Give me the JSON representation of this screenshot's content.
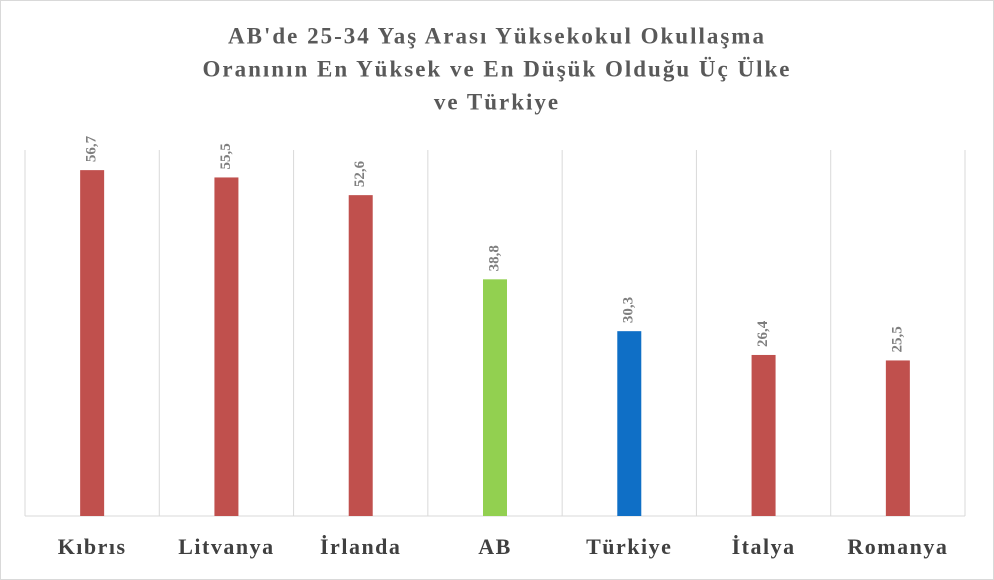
{
  "chart_data": {
    "type": "bar",
    "title": [
      "AB'de 25-34 Yaş Arası Yüksekokul Okullaşma",
      "Oranının En Yüksek ve En Düşük Olduğu Üç Ülke",
      "ve Türkiye"
    ],
    "categories": [
      "Kıbrıs",
      "Litvanya",
      "İrlanda",
      "AB",
      "Türkiye",
      "İtalya",
      "Romanya"
    ],
    "values": [
      56.7,
      55.5,
      52.6,
      38.8,
      30.3,
      26.4,
      25.5
    ],
    "value_labels": [
      "56,7",
      "55,5",
      "52,6",
      "38,8",
      "30,3",
      "26,4",
      "25,5"
    ],
    "colors": [
      "#c0504d",
      "#c0504d",
      "#c0504d",
      "#92d050",
      "#0f6fc6",
      "#c0504d",
      "#c0504d"
    ],
    "ylim": [
      0,
      60
    ]
  }
}
